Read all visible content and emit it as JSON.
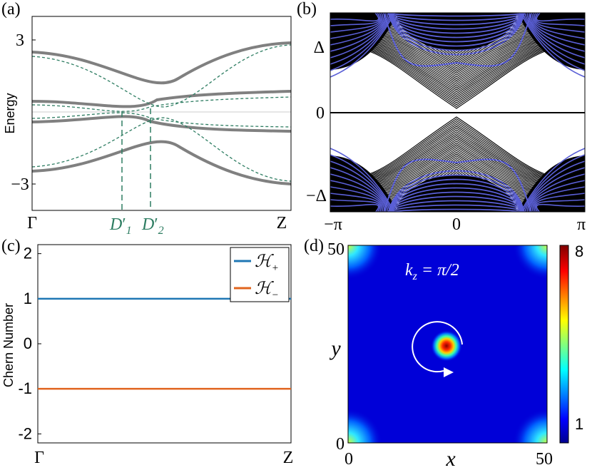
{
  "panels": {
    "a": {
      "label": "(a)",
      "ylabel": "Energy",
      "yticks": [
        "3",
        "−3"
      ],
      "xticks": [
        "Γ",
        "Z"
      ],
      "markers": [
        {
          "base": "D",
          "sub": "1",
          "x": 0.36
        },
        {
          "base": "D",
          "sub": "2",
          "x": 0.47
        }
      ]
    },
    "b": {
      "label": "(b)",
      "yticks": [
        "Δ",
        "0",
        "−Δ"
      ],
      "xticks": [
        "−π",
        "0",
        "π"
      ]
    },
    "c": {
      "label": "(c)",
      "ylabel": "Chern Number",
      "yticks": [
        "2",
        "1",
        "0",
        "-1",
        "-2"
      ],
      "xticks": [
        "Γ",
        "Z"
      ],
      "legend": [
        {
          "name": "ℋ+",
          "base": "ℋ",
          "sub": "+",
          "color": "#1f77b4"
        },
        {
          "name": "ℋ−",
          "base": "ℋ",
          "sub": "−",
          "color": "#e0641e"
        }
      ]
    },
    "d": {
      "label": "(d)",
      "annotation": "k",
      "annotation_sub": "z",
      "annotation_rest": " = π/2",
      "xlabel": "x",
      "ylabel": "y",
      "xticks": [
        "0",
        "50"
      ],
      "yticks": [
        "0",
        "50"
      ],
      "colorbar_ticks": [
        "8",
        "1"
      ]
    }
  },
  "chart_data": [
    {
      "type": "line",
      "panel": "a",
      "title": "",
      "ylabel": "Energy",
      "xlabel": "",
      "x_ticks": [
        "Γ",
        "Z"
      ],
      "ylim": [
        -4.2,
        4.2
      ],
      "grid": false,
      "x": [
        0,
        1
      ],
      "series": [
        {
          "style": "solid-gray",
          "endpoints": [
            [
              0,
              2.6
            ],
            [
              1,
              2.9
            ]
          ]
        },
        {
          "style": "solid-gray",
          "endpoints": [
            [
              0,
              0.45
            ],
            [
              1,
              0.85
            ]
          ]
        },
        {
          "style": "solid-gray",
          "endpoints": [
            [
              0,
              -0.45
            ],
            [
              1,
              -0.85
            ]
          ]
        },
        {
          "style": "solid-gray",
          "endpoints": [
            [
              0,
              -2.6
            ],
            [
              1,
              -2.9
            ]
          ]
        },
        {
          "style": "dashed-green",
          "endpoints": [
            [
              0,
              2.4
            ],
            [
              1,
              2.8
            ]
          ]
        },
        {
          "style": "dashed-green",
          "endpoints": [
            [
              0,
              -2.4
            ],
            [
              1,
              -2.8
            ]
          ]
        }
      ],
      "annotations": [
        "D′1",
        "D′2"
      ]
    },
    {
      "type": "line",
      "panel": "b",
      "title": "",
      "x_ticks": [
        "−π",
        "0",
        "π"
      ],
      "y_ticks": [
        "Δ",
        "0",
        "−Δ"
      ],
      "xlim": [
        -3.1416,
        3.1416
      ],
      "grid": false,
      "colors": {
        "bands": "#000000",
        "highlight": "#5a5fd6"
      }
    },
    {
      "type": "line",
      "panel": "c",
      "title": "",
      "ylabel": "Chern Number",
      "x_ticks": [
        "Γ",
        "Z"
      ],
      "ylim": [
        -2.2,
        2.2
      ],
      "legend_position": "top-right",
      "series": [
        {
          "name": "ℋ+",
          "x": [
            0,
            1
          ],
          "values": [
            1,
            1
          ],
          "color": "#1f77b4"
        },
        {
          "name": "ℋ−",
          "x": [
            0,
            1
          ],
          "values": [
            -1,
            -1
          ],
          "color": "#e0641e"
        }
      ]
    },
    {
      "type": "heatmap",
      "panel": "d",
      "title": "",
      "xlabel": "x",
      "ylabel": "y",
      "xlim": [
        0,
        50
      ],
      "ylim": [
        0,
        50
      ],
      "colorbar_range": [
        1,
        8
      ],
      "peak": {
        "x": 25,
        "y": 25,
        "value": 8
      },
      "corner_value": 4
    }
  ]
}
